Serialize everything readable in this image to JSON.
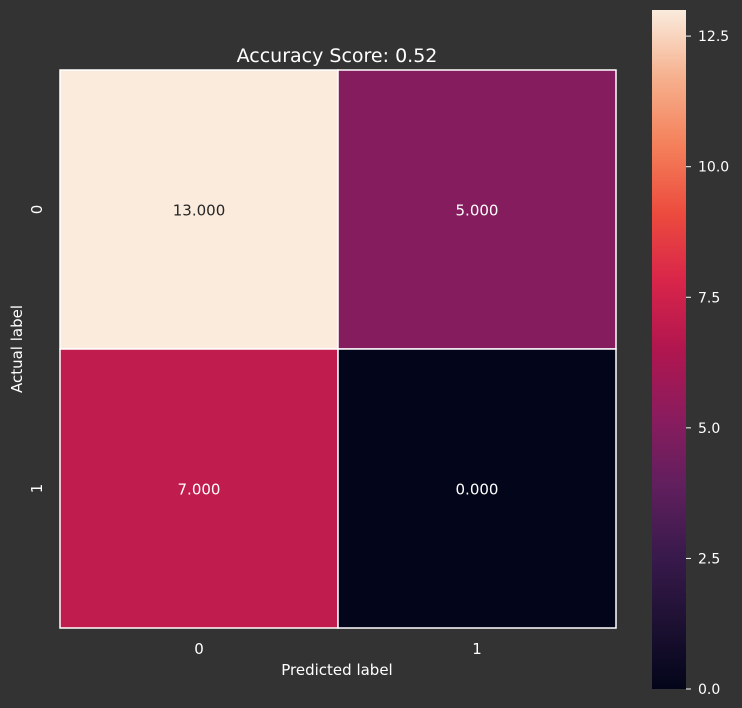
{
  "chart_data": {
    "type": "heatmap",
    "title": "Accuracy Score: 0.52",
    "xlabel": "Predicted label",
    "ylabel": "Actual label",
    "x_categories": [
      "0",
      "1"
    ],
    "y_categories": [
      "0",
      "1"
    ],
    "values": [
      [
        13,
        5
      ],
      [
        7,
        0
      ]
    ],
    "cell_labels": [
      [
        "13.000",
        "5.000"
      ],
      [
        "7.000",
        "0.000"
      ]
    ],
    "colormap": "rocket",
    "colorbar": {
      "range": [
        0,
        13
      ],
      "ticks": [
        0.0,
        2.5,
        5.0,
        7.5,
        10.0,
        12.5
      ],
      "tick_labels": [
        "0.0",
        "2.5",
        "5.0",
        "7.5",
        "10.0",
        "12.5"
      ]
    },
    "colors": {
      "background": "#333333",
      "text": "#ffffff",
      "cell_border": "#ffffff"
    }
  }
}
